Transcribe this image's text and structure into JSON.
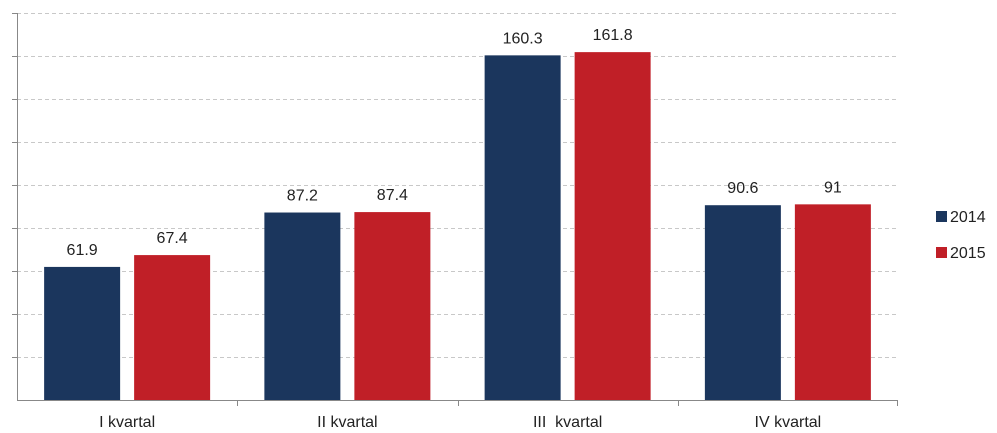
{
  "chart_data": {
    "type": "bar",
    "title": "",
    "xlabel": "",
    "ylabel": "",
    "categories": [
      "I kvartal",
      "II kvartal",
      "III  kvartal",
      "IV kvartal"
    ],
    "series": [
      {
        "name": "2014",
        "color": "#1b365d",
        "values": [
          61.9,
          87.2,
          160.3,
          90.6
        ],
        "labels": [
          "61.9",
          "87.2",
          "160.3",
          "90.6"
        ]
      },
      {
        "name": "2015",
        "color": "#c01f27",
        "values": [
          67.4,
          87.4,
          161.8,
          91
        ],
        "labels": [
          "67.4",
          "87.4",
          "161.8",
          "91"
        ]
      }
    ],
    "ylim": [
      0,
      180
    ],
    "ytick_step": 20,
    "y_tick_labels_shown": false,
    "grid": true,
    "grid_style": "dashed",
    "legend_position": "right"
  }
}
